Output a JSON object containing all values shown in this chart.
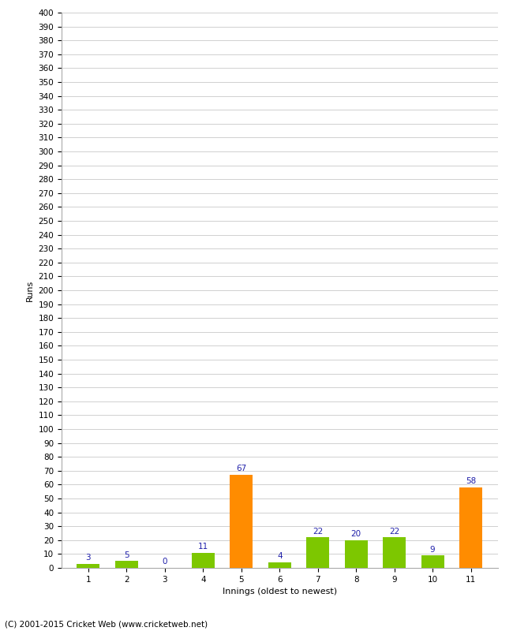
{
  "innings": [
    1,
    2,
    3,
    4,
    5,
    6,
    7,
    8,
    9,
    10,
    11
  ],
  "runs": [
    3,
    5,
    0,
    11,
    67,
    4,
    22,
    20,
    22,
    9,
    58
  ],
  "colors": [
    "#7dc700",
    "#7dc700",
    "#7dc700",
    "#7dc700",
    "#ff8c00",
    "#7dc700",
    "#7dc700",
    "#7dc700",
    "#7dc700",
    "#7dc700",
    "#ff8c00"
  ],
  "xlabel": "Innings (oldest to newest)",
  "ylabel": "Runs",
  "ytick_step": 10,
  "ymax": 400,
  "label_color": "#2020aa",
  "label_fontsize": 7.5,
  "axis_label_fontsize": 8,
  "tick_fontsize": 7.5,
  "footer": "(C) 2001-2015 Cricket Web (www.cricketweb.net)",
  "background_color": "#ffffff",
  "grid_color": "#d0d0d0"
}
